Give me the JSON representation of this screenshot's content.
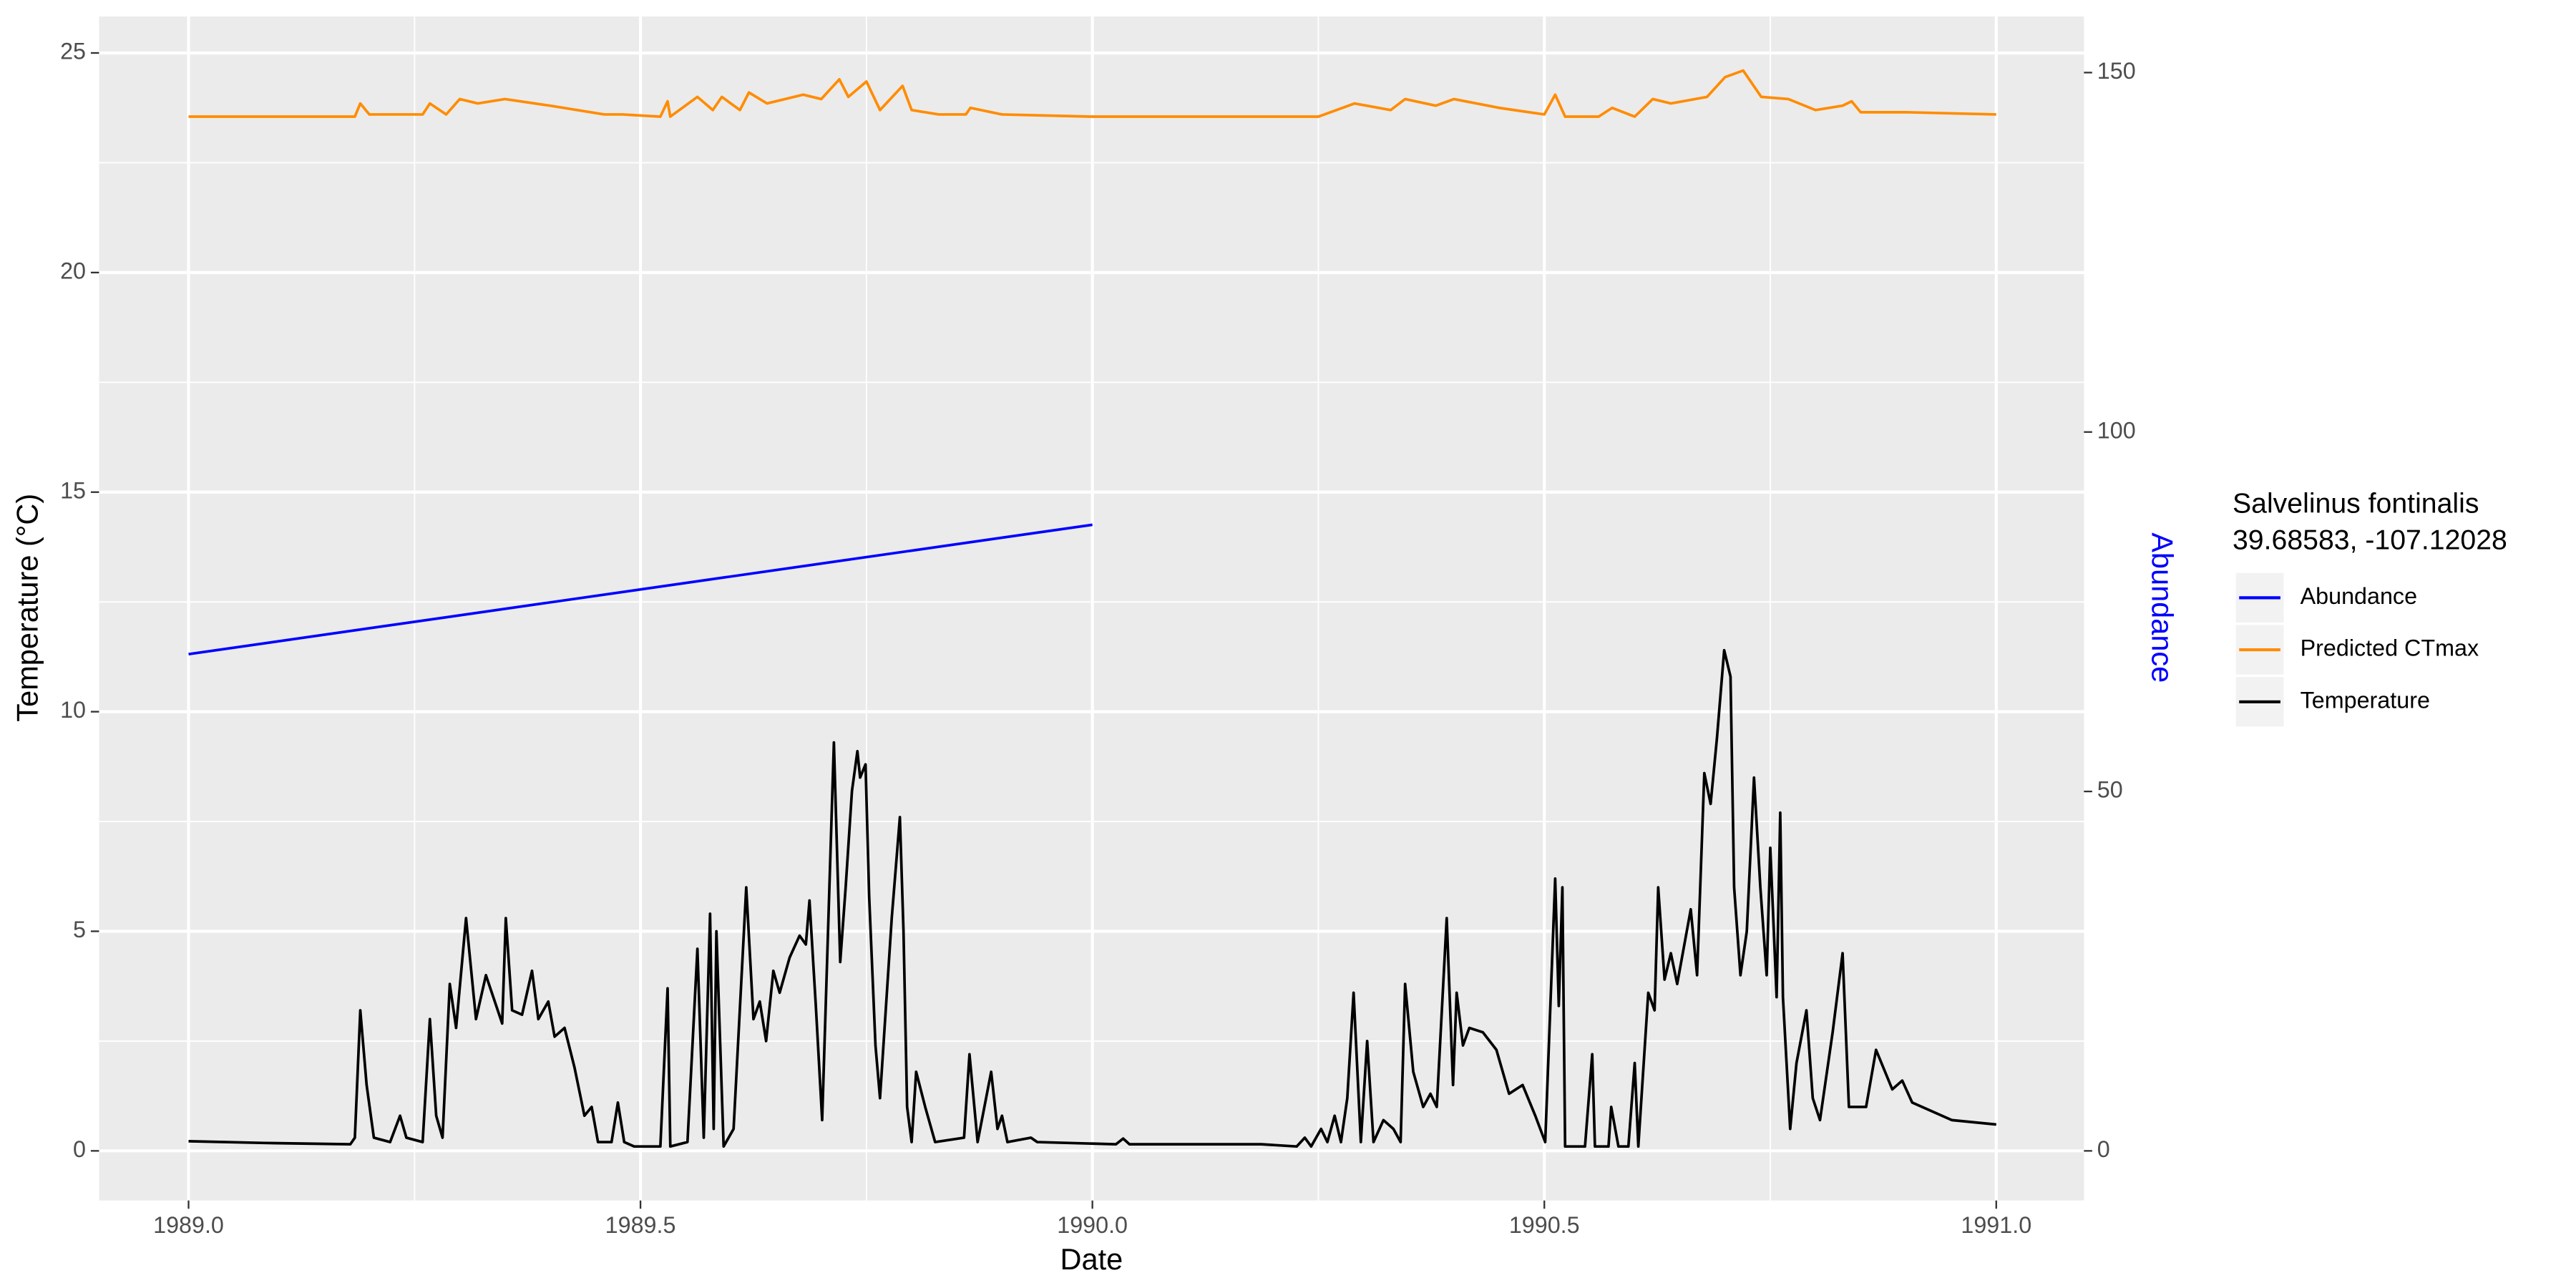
{
  "chart_data": {
    "type": "line",
    "y_label": "Temperature (°C)",
    "x_label": "Date",
    "y2_label": "Abundance",
    "y2_label_color": "#0000ff",
    "legend_title": [
      "Salvelinus fontinalis",
      "39.68583, -107.12028"
    ],
    "legend_position": "right",
    "grid": true,
    "minor_grid": true,
    "xlim": [
      1988.901,
      1991.097
    ],
    "xticks": [
      {
        "value": 1989,
        "label": "1989.0"
      },
      {
        "value": 1989.5,
        "label": "1989.5"
      },
      {
        "value": 1990,
        "label": "1990.0"
      },
      {
        "value": 1990.5,
        "label": "1990.5"
      },
      {
        "value": 1991,
        "label": "1991.0"
      }
    ],
    "ylim": [
      -1.13,
      25.83
    ],
    "yticks": [
      0,
      5,
      10,
      15,
      20,
      25
    ],
    "y2lim": [
      -6.9,
      157.8
    ],
    "y2ticks": [
      0,
      50,
      100,
      150
    ],
    "series": [
      {
        "name": "Abundance",
        "color": "#0000ff",
        "axis": "y2",
        "x": [
          1989.0,
          1990.0
        ],
        "values": [
          69.1,
          87.1
        ]
      },
      {
        "name": "Predicted CTmax",
        "color": "#ff8c00",
        "x": [
          1989.0,
          1989.184,
          1989.19,
          1989.2,
          1989.259,
          1989.267,
          1989.285,
          1989.3,
          1989.32,
          1989.35,
          1989.4,
          1989.46,
          1989.48,
          1989.522,
          1989.53,
          1989.533,
          1989.563,
          1989.58,
          1989.59,
          1989.61,
          1989.62,
          1989.64,
          1989.68,
          1989.7,
          1989.72,
          1989.73,
          1989.75,
          1989.765,
          1989.79,
          1989.8,
          1989.83,
          1989.86,
          1989.865,
          1989.9,
          1990.0,
          1990.25,
          1990.29,
          1990.33,
          1990.346,
          1990.38,
          1990.4,
          1990.45,
          1990.5,
          1990.512,
          1990.523,
          1990.56,
          1990.575,
          1990.6,
          1990.62,
          1990.64,
          1990.68,
          1990.7,
          1990.72,
          1990.74,
          1990.77,
          1990.8,
          1990.83,
          1990.84,
          1990.85,
          1990.9,
          1991.0
        ],
        "values": [
          23.55,
          23.55,
          23.85,
          23.6,
          23.6,
          23.85,
          23.6,
          23.95,
          23.85,
          23.95,
          23.8,
          23.6,
          23.6,
          23.55,
          23.9,
          23.55,
          24.0,
          23.7,
          24.0,
          23.7,
          24.1,
          23.85,
          24.05,
          23.95,
          24.4,
          24.0,
          24.35,
          23.7,
          24.25,
          23.7,
          23.6,
          23.6,
          23.75,
          23.6,
          23.55,
          23.55,
          23.85,
          23.7,
          23.95,
          23.8,
          23.95,
          23.75,
          23.6,
          24.05,
          23.55,
          23.55,
          23.75,
          23.55,
          23.95,
          23.85,
          24.0,
          24.45,
          24.6,
          24.0,
          23.95,
          23.7,
          23.8,
          23.9,
          23.65,
          23.65,
          23.6
        ]
      },
      {
        "name": "Temperature",
        "color": "#000000",
        "x": [
          1989.0,
          1989.084,
          1989.179,
          1989.184,
          1989.19,
          1989.197,
          1989.205,
          1989.223,
          1989.234,
          1989.241,
          1989.259,
          1989.267,
          1989.274,
          1989.281,
          1989.289,
          1989.296,
          1989.307,
          1989.318,
          1989.329,
          1989.347,
          1989.351,
          1989.358,
          1989.369,
          1989.38,
          1989.387,
          1989.398,
          1989.405,
          1989.416,
          1989.427,
          1989.438,
          1989.446,
          1989.453,
          1989.468,
          1989.475,
          1989.482,
          1989.493,
          1989.522,
          1989.53,
          1989.533,
          1989.552,
          1989.563,
          1989.57,
          1989.577,
          1989.581,
          1989.584,
          1989.592,
          1989.603,
          1989.617,
          1989.625,
          1989.632,
          1989.639,
          1989.647,
          1989.654,
          1989.665,
          1989.676,
          1989.683,
          1989.687,
          1989.694,
          1989.701,
          1989.709,
          1989.714,
          1989.721,
          1989.727,
          1989.734,
          1989.74,
          1989.743,
          1989.749,
          1989.753,
          1989.76,
          1989.765,
          1989.778,
          1989.787,
          1989.791,
          1989.795,
          1989.8,
          1989.805,
          1989.815,
          1989.826,
          1989.858,
          1989.864,
          1989.873,
          1989.888,
          1989.895,
          1989.9,
          1989.906,
          1989.932,
          1989.939,
          1990.026,
          1990.034,
          1990.041,
          1990.187,
          1990.226,
          1990.235,
          1990.242,
          1990.253,
          1990.26,
          1990.268,
          1990.275,
          1990.282,
          1990.289,
          1990.297,
          1990.304,
          1990.311,
          1990.322,
          1990.333,
          1990.341,
          1990.346,
          1990.355,
          1990.366,
          1990.374,
          1990.381,
          1990.392,
          1990.399,
          1990.403,
          1990.41,
          1990.417,
          1990.432,
          1990.447,
          1990.461,
          1990.476,
          1990.49,
          1990.501,
          1990.512,
          1990.516,
          1990.52,
          1990.523,
          1990.545,
          1990.553,
          1990.556,
          1990.571,
          1990.574,
          1990.582,
          1990.593,
          1990.6,
          1990.604,
          1990.615,
          1990.622,
          1990.626,
          1990.633,
          1990.64,
          1990.647,
          1990.662,
          1990.669,
          1990.677,
          1990.684,
          1990.691,
          1990.699,
          1990.706,
          1990.71,
          1990.717,
          1990.724,
          1990.732,
          1990.739,
          1990.746,
          1990.75,
          1990.757,
          1990.761,
          1990.764,
          1990.772,
          1990.779,
          1990.79,
          1990.797,
          1990.805,
          1990.819,
          1990.83,
          1990.837,
          1990.856,
          1990.867,
          1990.885,
          1990.896,
          1990.907,
          1990.951,
          1991.0
        ],
        "values": [
          0.22,
          0.18,
          0.15,
          0.3,
          3.2,
          1.5,
          0.3,
          0.2,
          0.8,
          0.3,
          0.2,
          3.0,
          0.8,
          0.3,
          3.8,
          2.8,
          5.3,
          3.0,
          4.0,
          2.9,
          5.3,
          3.2,
          3.1,
          4.1,
          3.0,
          3.4,
          2.6,
          2.8,
          1.9,
          0.8,
          1.0,
          0.2,
          0.2,
          1.1,
          0.2,
          0.1,
          0.1,
          3.7,
          0.1,
          0.2,
          4.6,
          0.3,
          5.4,
          0.5,
          5.0,
          0.1,
          0.5,
          6.0,
          3.0,
          3.4,
          2.5,
          4.1,
          3.6,
          4.4,
          4.9,
          4.7,
          5.7,
          3.3,
          0.7,
          6.0,
          9.3,
          4.3,
          6.0,
          8.2,
          9.1,
          8.5,
          8.8,
          5.8,
          2.4,
          1.2,
          5.3,
          7.6,
          5.0,
          1.0,
          0.2,
          1.8,
          1.0,
          0.2,
          0.3,
          2.2,
          0.2,
          1.8,
          0.5,
          0.8,
          0.2,
          0.3,
          0.2,
          0.15,
          0.28,
          0.15,
          0.15,
          0.1,
          0.3,
          0.1,
          0.5,
          0.2,
          0.8,
          0.2,
          1.2,
          3.6,
          0.2,
          2.5,
          0.2,
          0.7,
          0.5,
          0.2,
          3.8,
          1.8,
          1.0,
          1.3,
          1.0,
          5.3,
          1.5,
          3.6,
          2.4,
          2.8,
          2.7,
          2.3,
          1.3,
          1.5,
          0.8,
          0.2,
          6.2,
          3.3,
          6.0,
          0.1,
          0.1,
          2.2,
          0.1,
          0.1,
          1.0,
          0.1,
          0.1,
          2.0,
          0.1,
          3.6,
          3.2,
          6.0,
          3.9,
          4.5,
          3.8,
          5.5,
          4.0,
          8.6,
          7.9,
          9.4,
          11.4,
          10.8,
          6.0,
          4.0,
          5.0,
          8.5,
          6.0,
          4.0,
          6.9,
          3.5,
          7.7,
          3.5,
          0.5,
          2.0,
          3.2,
          1.2,
          0.7,
          2.7,
          4.5,
          1.0,
          1.0,
          2.3,
          1.4,
          1.6,
          1.1,
          0.7,
          0.6
        ]
      }
    ]
  }
}
